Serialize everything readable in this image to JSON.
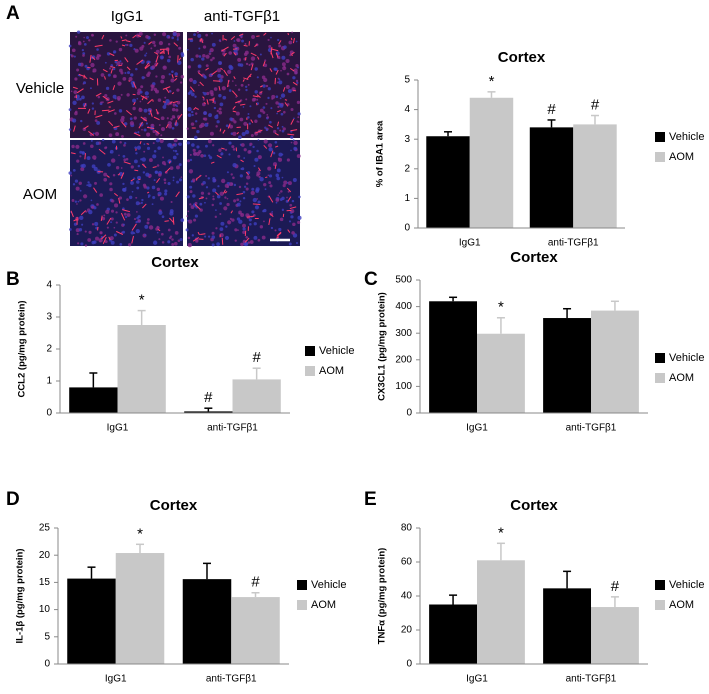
{
  "image_panel": {
    "panel": "A",
    "columns": [
      "IgG1",
      "anti-TGFβ1"
    ],
    "rows": [
      "Vehicle",
      "AOM"
    ]
  },
  "chart_data": [
    {
      "type": "bar",
      "title": "Cortex",
      "y_label": "% of IBA1 area",
      "categories": [
        "IgG1",
        "anti-TGFβ1"
      ],
      "ylim": [
        0,
        5
      ],
      "yticks": [
        0,
        1,
        2,
        3,
        4,
        5
      ],
      "series": [
        {
          "name": "Vehicle",
          "color": "#000000",
          "values": [
            3.1,
            3.4
          ],
          "errors": [
            0.15,
            0.25
          ],
          "annotations": [
            null,
            "#"
          ]
        },
        {
          "name": "AOM",
          "color": "#c8c8c8",
          "values": [
            4.4,
            3.5
          ],
          "errors": [
            0.2,
            0.3
          ],
          "annotations": [
            "*",
            "#"
          ]
        }
      ]
    },
    {
      "type": "bar",
      "panel": "B",
      "title": "Cortex",
      "y_label": "CCL2 (pg/mg protein)",
      "categories": [
        "IgG1",
        "anti-TGFβ1"
      ],
      "ylim": [
        0,
        4
      ],
      "yticks": [
        0,
        1,
        2,
        3,
        4
      ],
      "series": [
        {
          "name": "Vehicle",
          "color": "#000000",
          "values": [
            0.8,
            0.05
          ],
          "errors": [
            0.45,
            0.1
          ],
          "annotations": [
            null,
            "#"
          ]
        },
        {
          "name": "AOM",
          "color": "#c8c8c8",
          "values": [
            2.75,
            1.05
          ],
          "errors": [
            0.45,
            0.35
          ],
          "annotations": [
            "*",
            "#"
          ]
        }
      ]
    },
    {
      "type": "bar",
      "panel": "C",
      "title": "Cortex",
      "y_label": "CX3CL1 (pg/mg protein)",
      "categories": [
        "IgG1",
        "anti-TGFβ1"
      ],
      "ylim": [
        0,
        500
      ],
      "yticks": [
        0,
        100,
        200,
        300,
        400,
        500
      ],
      "series": [
        {
          "name": "Vehicle",
          "color": "#000000",
          "values": [
            420,
            357
          ],
          "errors": [
            15,
            35
          ],
          "annotations": [
            null,
            null
          ]
        },
        {
          "name": "AOM",
          "color": "#c8c8c8",
          "values": [
            298,
            385
          ],
          "errors": [
            60,
            35
          ],
          "annotations": [
            "*",
            null
          ]
        }
      ]
    },
    {
      "type": "bar",
      "panel": "D",
      "title": "Cortex",
      "y_label": "IL-1β (pg/mg protein)",
      "categories": [
        "IgG1",
        "anti-TGFβ1"
      ],
      "ylim": [
        0,
        25
      ],
      "yticks": [
        0,
        5,
        10,
        15,
        20,
        25
      ],
      "series": [
        {
          "name": "Vehicle",
          "color": "#000000",
          "values": [
            15.7,
            15.6
          ],
          "errors": [
            2.1,
            2.9
          ],
          "annotations": [
            null,
            null
          ]
        },
        {
          "name": "AOM",
          "color": "#c8c8c8",
          "values": [
            20.4,
            12.3
          ],
          "errors": [
            1.6,
            0.8
          ],
          "annotations": [
            "*",
            "#"
          ]
        }
      ]
    },
    {
      "type": "bar",
      "panel": "E",
      "title": "Cortex",
      "y_label": "TNFα (pg/mg protein)",
      "categories": [
        "IgG1",
        "anti-TGFβ1"
      ],
      "ylim": [
        0,
        80
      ],
      "yticks": [
        0,
        20,
        40,
        60,
        80
      ],
      "series": [
        {
          "name": "Vehicle",
          "color": "#000000",
          "values": [
            35,
            44.5
          ],
          "errors": [
            5.5,
            10
          ],
          "annotations": [
            null,
            null
          ]
        },
        {
          "name": "AOM",
          "color": "#c8c8c8",
          "values": [
            61,
            33.5
          ],
          "errors": [
            10,
            6
          ],
          "annotations": [
            "*",
            "#"
          ]
        }
      ]
    }
  ]
}
